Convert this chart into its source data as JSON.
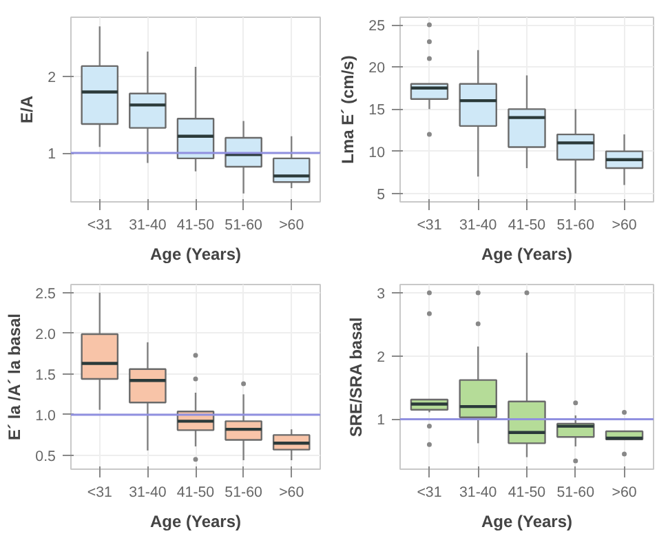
{
  "chart_data": [
    {
      "type": "box",
      "categories": [
        "<31",
        "31-40",
        "41-50",
        "51-60",
        ">60"
      ],
      "xlabel": "Age (Years)",
      "ylabel": "E/A",
      "ylim": [
        0.36,
        2.78
      ],
      "yticks": [
        1,
        2
      ],
      "grid": true,
      "ref_lines": [
        {
          "axis": "y",
          "value": 1,
          "color": "#9090e0"
        }
      ],
      "series": [
        {
          "color": "#cfe8f7",
          "boxes": [
            {
              "low": 1.08,
              "q1": 1.38,
              "median": 1.8,
              "q3": 2.14,
              "high": 2.66
            },
            {
              "low": 0.87,
              "q1": 1.33,
              "median": 1.63,
              "q3": 1.78,
              "high": 2.33
            },
            {
              "low": 0.76,
              "q1": 0.93,
              "median": 1.22,
              "q3": 1.45,
              "high": 2.13
            },
            {
              "low": 0.47,
              "q1": 0.82,
              "median": 0.98,
              "q3": 1.2,
              "high": 1.42
            },
            {
              "low": 0.54,
              "q1": 0.62,
              "median": 0.7,
              "q3": 0.93,
              "high": 1.22
            }
          ]
        }
      ]
    },
    {
      "type": "box",
      "categories": [
        "<31",
        "31-40",
        "41-50",
        "51-60",
        ">60"
      ],
      "xlabel": "Age (Years)",
      "ylabel": "Lma E´ (cm/s)",
      "ylim": [
        4,
        25.9
      ],
      "yticks": [
        5,
        10,
        15,
        20,
        25
      ],
      "grid": true,
      "series": [
        {
          "color": "#cfe8f7",
          "boxes": [
            {
              "low": 15,
              "q1": 16.2,
              "median": 17.5,
              "q3": 18,
              "high": 18,
              "outliers": [
                25,
                23,
                21,
                12
              ]
            },
            {
              "low": 7,
              "q1": 13,
              "median": 16,
              "q3": 18,
              "high": 22
            },
            {
              "low": 8,
              "q1": 10.5,
              "median": 14,
              "q3": 15,
              "high": 19
            },
            {
              "low": 5,
              "q1": 9,
              "median": 11,
              "q3": 12,
              "high": 15
            },
            {
              "low": 6,
              "q1": 8,
              "median": 9,
              "q3": 10,
              "high": 12
            }
          ]
        }
      ]
    },
    {
      "type": "box",
      "categories": [
        "<31",
        "31-40",
        "41-50",
        "51-60",
        ">60"
      ],
      "xlabel": "Age (Years)",
      "ylabel": "E´ la /A´ la basal",
      "ylim": [
        0.33,
        2.6
      ],
      "yticks": [
        {
          "value": 0.5,
          "label": "0.5"
        },
        {
          "value": 1,
          "label": "1.0"
        },
        {
          "value": 1.5,
          "label": "1.5"
        },
        {
          "value": 2,
          "label": "2.0"
        },
        {
          "value": 2.5,
          "label": "2.5"
        }
      ],
      "grid": true,
      "ref_lines": [
        {
          "axis": "y",
          "value": 1,
          "color": "#9090e0"
        }
      ],
      "series": [
        {
          "color": "#f8c4a8",
          "boxes": [
            {
              "low": 1.06,
              "q1": 1.44,
              "median": 1.63,
              "q3": 1.99,
              "high": 2.5
            },
            {
              "low": 0.56,
              "q1": 1.15,
              "median": 1.42,
              "q3": 1.56,
              "high": 1.89
            },
            {
              "low": 0.61,
              "q1": 0.81,
              "median": 0.92,
              "q3": 1.04,
              "high": 1.27,
              "outliers": [
                1.73,
                1.44,
                0.45
              ]
            },
            {
              "low": 0.44,
              "q1": 0.69,
              "median": 0.82,
              "q3": 0.92,
              "high": 1.25,
              "outliers": [
                1.38
              ]
            },
            {
              "low": 0.44,
              "q1": 0.57,
              "median": 0.65,
              "q3": 0.75,
              "high": 0.82
            }
          ]
        }
      ]
    },
    {
      "type": "box",
      "categories": [
        "<31",
        "31-40",
        "41-50",
        "51-60",
        ">60"
      ],
      "xlabel": "Age (Years)",
      "ylabel": "SRE/SRA basal",
      "ylim": [
        0.21,
        3.13
      ],
      "yticks": [
        1,
        2,
        3
      ],
      "grid": true,
      "ref_lines": [
        {
          "axis": "y",
          "value": 1,
          "color": "#9090e0"
        }
      ],
      "series": [
        {
          "color": "#b5dc98",
          "boxes": [
            {
              "low": 1.11,
              "q1": 1.15,
              "median": 1.24,
              "q3": 1.31,
              "high": 1.31,
              "outliers": [
                3.0,
                2.67,
                0.89,
                0.6
              ]
            },
            {
              "low": 0.62,
              "q1": 1.03,
              "median": 1.2,
              "q3": 1.62,
              "high": 2.15,
              "outliers": [
                3.0,
                2.51
              ]
            },
            {
              "low": 0.4,
              "q1": 0.62,
              "median": 0.79,
              "q3": 1.28,
              "high": 2.05,
              "outliers": [
                3.0
              ]
            },
            {
              "low": 0.57,
              "q1": 0.72,
              "median": 0.89,
              "q3": 0.93,
              "high": 1.06,
              "outliers": [
                1.26,
                0.34
              ]
            },
            {
              "low": 0.68,
              "q1": 0.68,
              "median": 0.7,
              "q3": 0.81,
              "high": 0.81,
              "outliers": [
                1.11,
                0.45
              ]
            }
          ]
        }
      ]
    }
  ]
}
